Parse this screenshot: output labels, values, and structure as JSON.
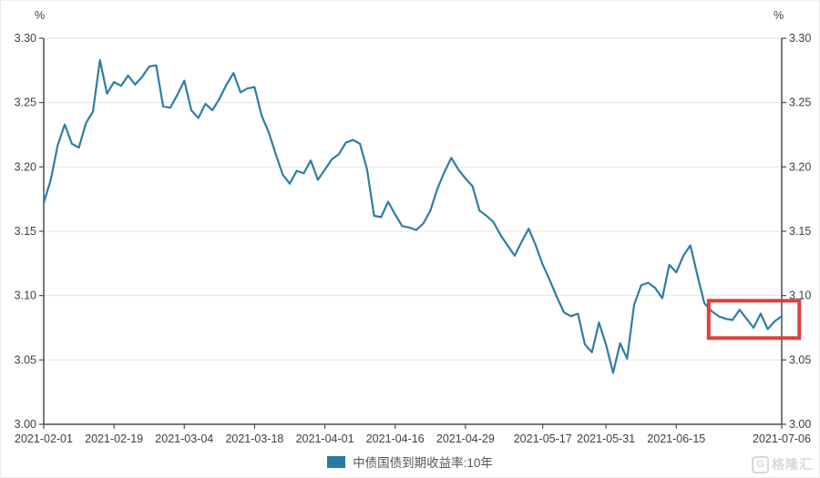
{
  "chart": {
    "unit_left": "%",
    "unit_right": "%",
    "legend_label": "中债国债到期收益率:10年",
    "watermark_logo": "G",
    "watermark_text": "格隆汇",
    "colors": {
      "line": "#2e7da7",
      "legend_swatch": "#2a7aa1",
      "highlight_box": "#d9423d",
      "axis": "#4d4d4d",
      "grid": "#e6e6e6",
      "tick_label": "#3f3f3f",
      "legend_text": "#555555",
      "watermark": "#d9d9d9"
    }
  },
  "chart_data": {
    "type": "line",
    "title": "",
    "xlabel": "",
    "ylabel": "%",
    "ylim": [
      3.0,
      3.3
    ],
    "y_tick_values": [
      3.3,
      3.25,
      3.2,
      3.15,
      3.1,
      3.05,
      3.0
    ],
    "y_tick_labels": [
      "3.30",
      "3.25",
      "3.20",
      "3.15",
      "3.10",
      "3.05",
      "3.00"
    ],
    "grid": true,
    "legend_position": "bottom",
    "x_tick_labels": [
      "2021-02-01",
      "2021-02-19",
      "2021-03-04",
      "2021-03-18",
      "2021-04-01",
      "2021-04-16",
      "2021-04-29",
      "2021-05-17",
      "2021-05-31",
      "2021-06-15",
      "2021-07-06"
    ],
    "x_tick_indices": [
      0,
      10,
      20,
      30,
      40,
      50,
      60,
      71,
      80,
      90,
      105
    ],
    "series": [
      {
        "name": "中债国债到期收益率:10年",
        "color": "#2e7da7",
        "values": [
          3.172,
          3.19,
          3.217,
          3.233,
          3.218,
          3.215,
          3.234,
          3.243,
          3.283,
          3.257,
          3.266,
          3.263,
          3.271,
          3.264,
          3.27,
          3.278,
          3.279,
          3.247,
          3.246,
          3.256,
          3.267,
          3.244,
          3.238,
          3.249,
          3.244,
          3.253,
          3.264,
          3.273,
          3.258,
          3.261,
          3.262,
          3.24,
          3.227,
          3.21,
          3.194,
          3.187,
          3.197,
          3.195,
          3.205,
          3.19,
          3.198,
          3.206,
          3.21,
          3.219,
          3.221,
          3.218,
          3.198,
          3.162,
          3.161,
          3.173,
          3.163,
          3.154,
          3.153,
          3.151,
          3.156,
          3.166,
          3.183,
          3.196,
          3.207,
          3.198,
          3.191,
          3.185,
          3.166,
          3.162,
          3.157,
          3.147,
          3.139,
          3.131,
          3.142,
          3.152,
          3.139,
          3.124,
          3.112,
          3.099,
          3.087,
          3.084,
          3.086,
          3.062,
          3.056,
          3.079,
          3.062,
          3.04,
          3.063,
          3.051,
          3.093,
          3.108,
          3.11,
          3.106,
          3.098,
          3.124,
          3.118,
          3.131,
          3.139,
          3.116,
          3.094,
          3.088,
          3.084,
          3.082,
          3.081,
          3.089,
          3.082,
          3.075,
          3.086,
          3.074,
          3.08,
          3.084
        ]
      }
    ],
    "highlight_box": {
      "x_from_index": 94.6,
      "x_to_index": 107.5,
      "y_from": 3.067,
      "y_to": 3.096,
      "color": "#d9423d"
    }
  }
}
